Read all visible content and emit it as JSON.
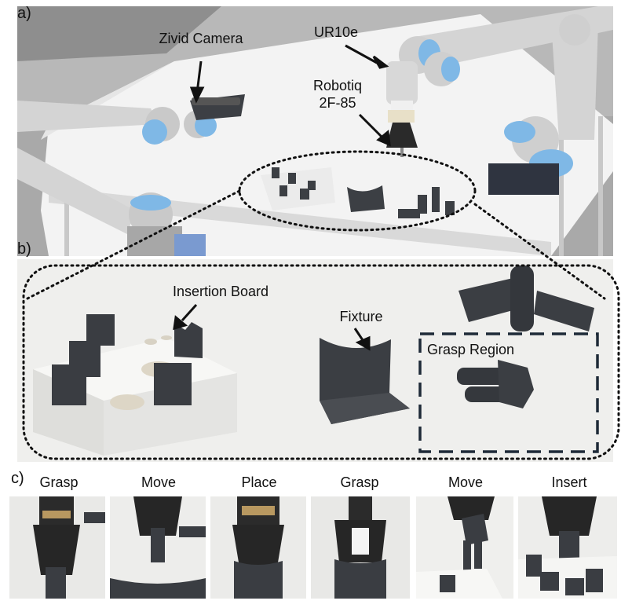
{
  "panel_a": {
    "label": "a)",
    "annotations": {
      "camera": "Zivid Camera",
      "robot": "UR10e",
      "gripper_line1": "Robotiq",
      "gripper_line2": "2F-85"
    }
  },
  "panel_b": {
    "label": "b)",
    "annotations": {
      "board": "Insertion Board",
      "fixture": "Fixture",
      "grasp_region": "Grasp Region"
    }
  },
  "panel_c": {
    "label": "c)",
    "steps": [
      "Grasp",
      "Move",
      "Place",
      "Grasp",
      "Move",
      "Insert"
    ]
  },
  "colors": {
    "robot_arm": "#d8d8d8",
    "robot_joint_cap": "#7fb8e6",
    "part_dark": "#3c3f44",
    "table": "#f2f2f2",
    "background_grey": "#9a9a9a"
  }
}
